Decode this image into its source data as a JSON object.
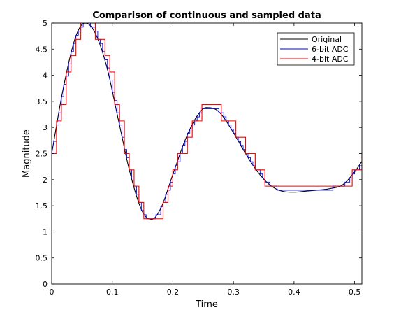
{
  "chart_data": {
    "type": "line",
    "title": "Comparison of continuous and sampled data",
    "xlabel": "Time",
    "ylabel": "Magnitude",
    "xlim": [
      0,
      0.512
    ],
    "ylim": [
      0,
      5
    ],
    "xticks": [
      0,
      0.1,
      0.2,
      0.3,
      0.4,
      0.5
    ],
    "xtick_labels": [
      "0",
      "0.1",
      "0.2",
      "0.3",
      "0.4",
      "0.5"
    ],
    "yticks": [
      0,
      0.5,
      1,
      1.5,
      2,
      2.5,
      3,
      3.5,
      4,
      4.5,
      5
    ],
    "ytick_labels": [
      "0",
      "0.5",
      "1",
      "1.5",
      "2",
      "2.5",
      "3",
      "3.5",
      "4",
      "4.5",
      "5"
    ],
    "grid": false,
    "legend_position": "top-right",
    "series": [
      {
        "name": "Original",
        "color": "#000000",
        "style": "line",
        "x": [
          0,
          0.02,
          0.04,
          0.055,
          0.07,
          0.09,
          0.11,
          0.13,
          0.15,
          0.165,
          0.18,
          0.2,
          0.22,
          0.24,
          0.255,
          0.27,
          0.28,
          0.3,
          0.32,
          0.34,
          0.36,
          0.38,
          0.4,
          0.42,
          0.44,
          0.46,
          0.48,
          0.5,
          0.512
        ],
        "y": [
          2.5,
          3.8,
          4.75,
          5.0,
          4.85,
          4.2,
          3.15,
          2.1,
          1.38,
          1.24,
          1.45,
          2.1,
          2.75,
          3.22,
          3.38,
          3.35,
          3.25,
          2.9,
          2.5,
          2.15,
          1.9,
          1.78,
          1.76,
          1.78,
          1.8,
          1.83,
          1.9,
          2.15,
          2.35
        ]
      },
      {
        "name": "6-bit ADC",
        "color": "#0000ff",
        "style": "step",
        "resolution": 0.078125,
        "sample_step": 0.004
      },
      {
        "name": "4-bit ADC",
        "color": "#ff0000",
        "style": "step",
        "resolution": 0.3125,
        "sample_step": 0.008
      }
    ]
  }
}
